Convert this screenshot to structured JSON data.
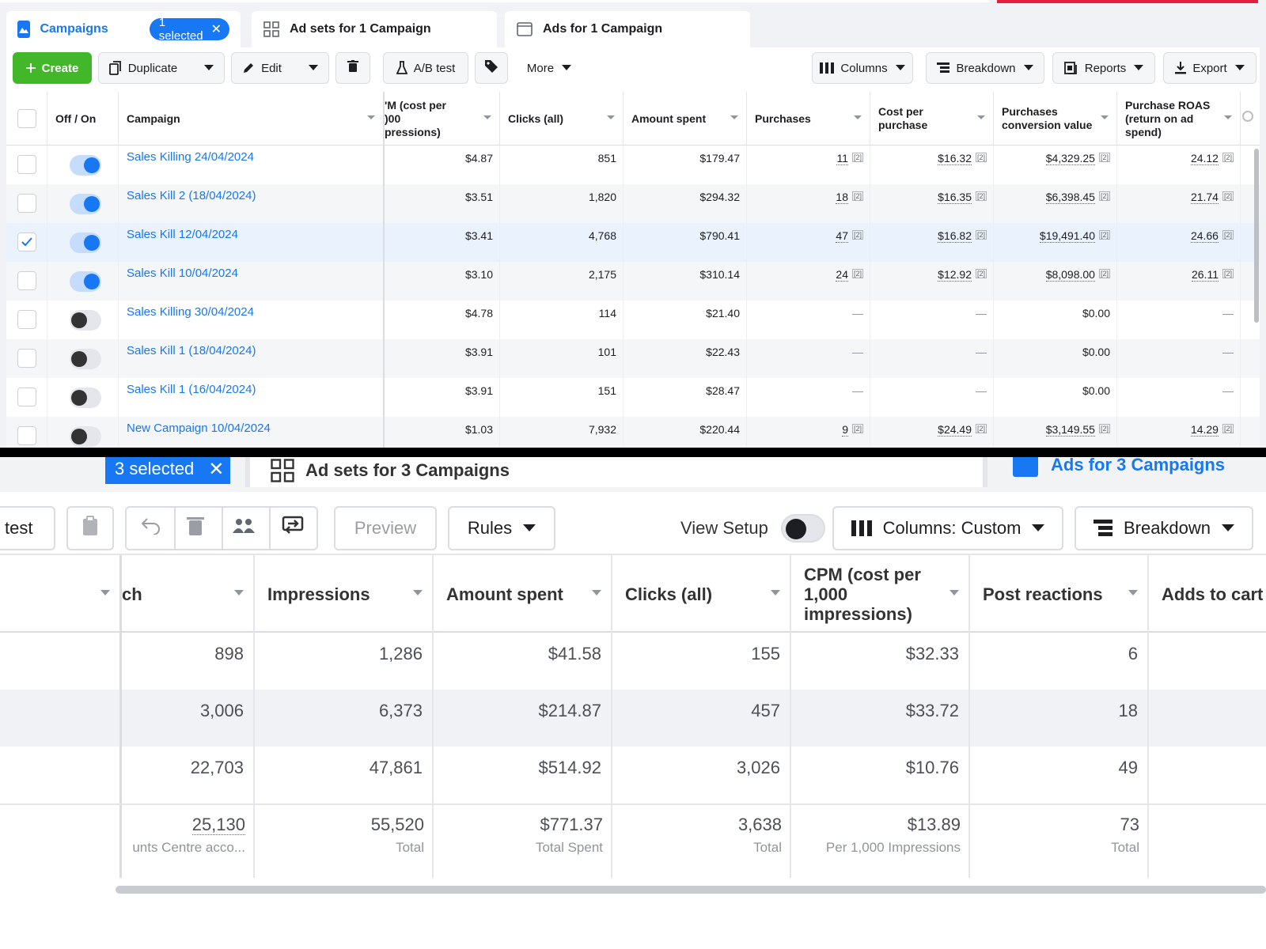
{
  "top": {
    "tabs": {
      "campaigns": "Campaigns",
      "selected_pill": "1 selected",
      "adsets": "Ad sets for 1 Campaign",
      "ads": "Ads for 1 Campaign"
    },
    "toolbar": {
      "create": "Create",
      "duplicate": "Duplicate",
      "edit": "Edit",
      "ab_test": "A/B test",
      "more": "More",
      "columns": "Columns",
      "breakdown": "Breakdown",
      "reports": "Reports",
      "export": "Export"
    },
    "columns": {
      "off_on": "Off / On",
      "campaign": "Campaign",
      "cpm": "'M (cost per\n)00\npressions)",
      "clicks": "Clicks (all)",
      "amount_spent": "Amount spent",
      "purchases": "Purchases",
      "cost_per_purchase": "Cost per purchase",
      "purchases_value": "Purchases conversion value",
      "roas": "Purchase ROAS (return on ad spend)"
    },
    "rows": [
      {
        "checked": false,
        "on": true,
        "name": "Sales Killing 24/04/2024",
        "cpm": "$4.87",
        "clicks": "851",
        "spent": "$179.47",
        "purchases": "11",
        "cpp": "$16.32",
        "value": "$4,329.25",
        "roas": "24.12"
      },
      {
        "checked": false,
        "on": true,
        "name": "Sales Kill 2 (18/04/2024)",
        "cpm": "$3.51",
        "clicks": "1,820",
        "spent": "$294.32",
        "purchases": "18",
        "cpp": "$16.35",
        "value": "$6,398.45",
        "roas": "21.74"
      },
      {
        "checked": true,
        "on": true,
        "name": "Sales Kill 12/04/2024",
        "cpm": "$3.41",
        "clicks": "4,768",
        "spent": "$790.41",
        "purchases": "47",
        "cpp": "$16.82",
        "value": "$19,491.40",
        "roas": "24.66"
      },
      {
        "checked": false,
        "on": true,
        "name": "Sales Kill 10/04/2024",
        "cpm": "$3.10",
        "clicks": "2,175",
        "spent": "$310.14",
        "purchases": "24",
        "cpp": "$12.92",
        "value": "$8,098.00",
        "roas": "26.11"
      },
      {
        "checked": false,
        "on": false,
        "name": "Sales Killing 30/04/2024",
        "cpm": "$4.78",
        "clicks": "114",
        "spent": "$21.40",
        "purchases": "—",
        "cpp": "—",
        "value": "$0.00",
        "roas": "—"
      },
      {
        "checked": false,
        "on": false,
        "name": "Sales Kill 1 (18/04/2024)",
        "cpm": "$3.91",
        "clicks": "101",
        "spent": "$22.43",
        "purchases": "—",
        "cpp": "—",
        "value": "$0.00",
        "roas": "—"
      },
      {
        "checked": false,
        "on": false,
        "name": "Sales Kill 1 (16/04/2024)",
        "cpm": "$3.91",
        "clicks": "151",
        "spent": "$28.47",
        "purchases": "—",
        "cpp": "—",
        "value": "$0.00",
        "roas": "—"
      },
      {
        "checked": false,
        "on": false,
        "name": "New Campaign 10/04/2024",
        "cpm": "$1.03",
        "clicks": "7,932",
        "spent": "$220.44",
        "purchases": "9",
        "cpp": "$24.49",
        "value": "$3,149.55",
        "roas": "14.29"
      }
    ],
    "ref_mark": "[2]"
  },
  "bottom": {
    "tabs": {
      "selected_pill": "3 selected",
      "adsets": "Ad sets for 3 Campaigns",
      "ads": "Ads for 3 Campaigns"
    },
    "toolbar": {
      "test": "test",
      "preview": "Preview",
      "rules": "Rules",
      "view_setup": "View Setup",
      "columns": "Columns: Custom",
      "breakdown": "Breakdown"
    },
    "columns": {
      "reach": "ch",
      "impressions": "Impressions",
      "amount_spent": "Amount spent",
      "clicks": "Clicks (all)",
      "cpm": "CPM (cost per 1,000 impressions)",
      "post_reactions": "Post reactions",
      "adds_to_cart": "Adds to cart"
    },
    "rows": [
      {
        "reach": "898",
        "impressions": "1,286",
        "spent": "$41.58",
        "clicks": "155",
        "cpm": "$32.33",
        "reactions": "6"
      },
      {
        "reach": "3,006",
        "impressions": "6,373",
        "spent": "$214.87",
        "clicks": "457",
        "cpm": "$33.72",
        "reactions": "18"
      },
      {
        "reach": "22,703",
        "impressions": "47,861",
        "spent": "$514.92",
        "clicks": "3,026",
        "cpm": "$10.76",
        "reactions": "49"
      }
    ],
    "totals": {
      "reach": "25,130",
      "reach_sub": "unts Centre acco...",
      "impressions": "55,520",
      "impressions_sub": "Total",
      "spent": "$771.37",
      "spent_sub": "Total Spent",
      "clicks": "3,638",
      "clicks_sub": "Total",
      "cpm": "$13.89",
      "cpm_sub": "Per 1,000 Impressions",
      "reactions": "73",
      "reactions_sub": "Total"
    }
  },
  "colors": {
    "accent": "#1877f2",
    "create_green": "#42b72a",
    "alert_red": "#e41e3f"
  }
}
